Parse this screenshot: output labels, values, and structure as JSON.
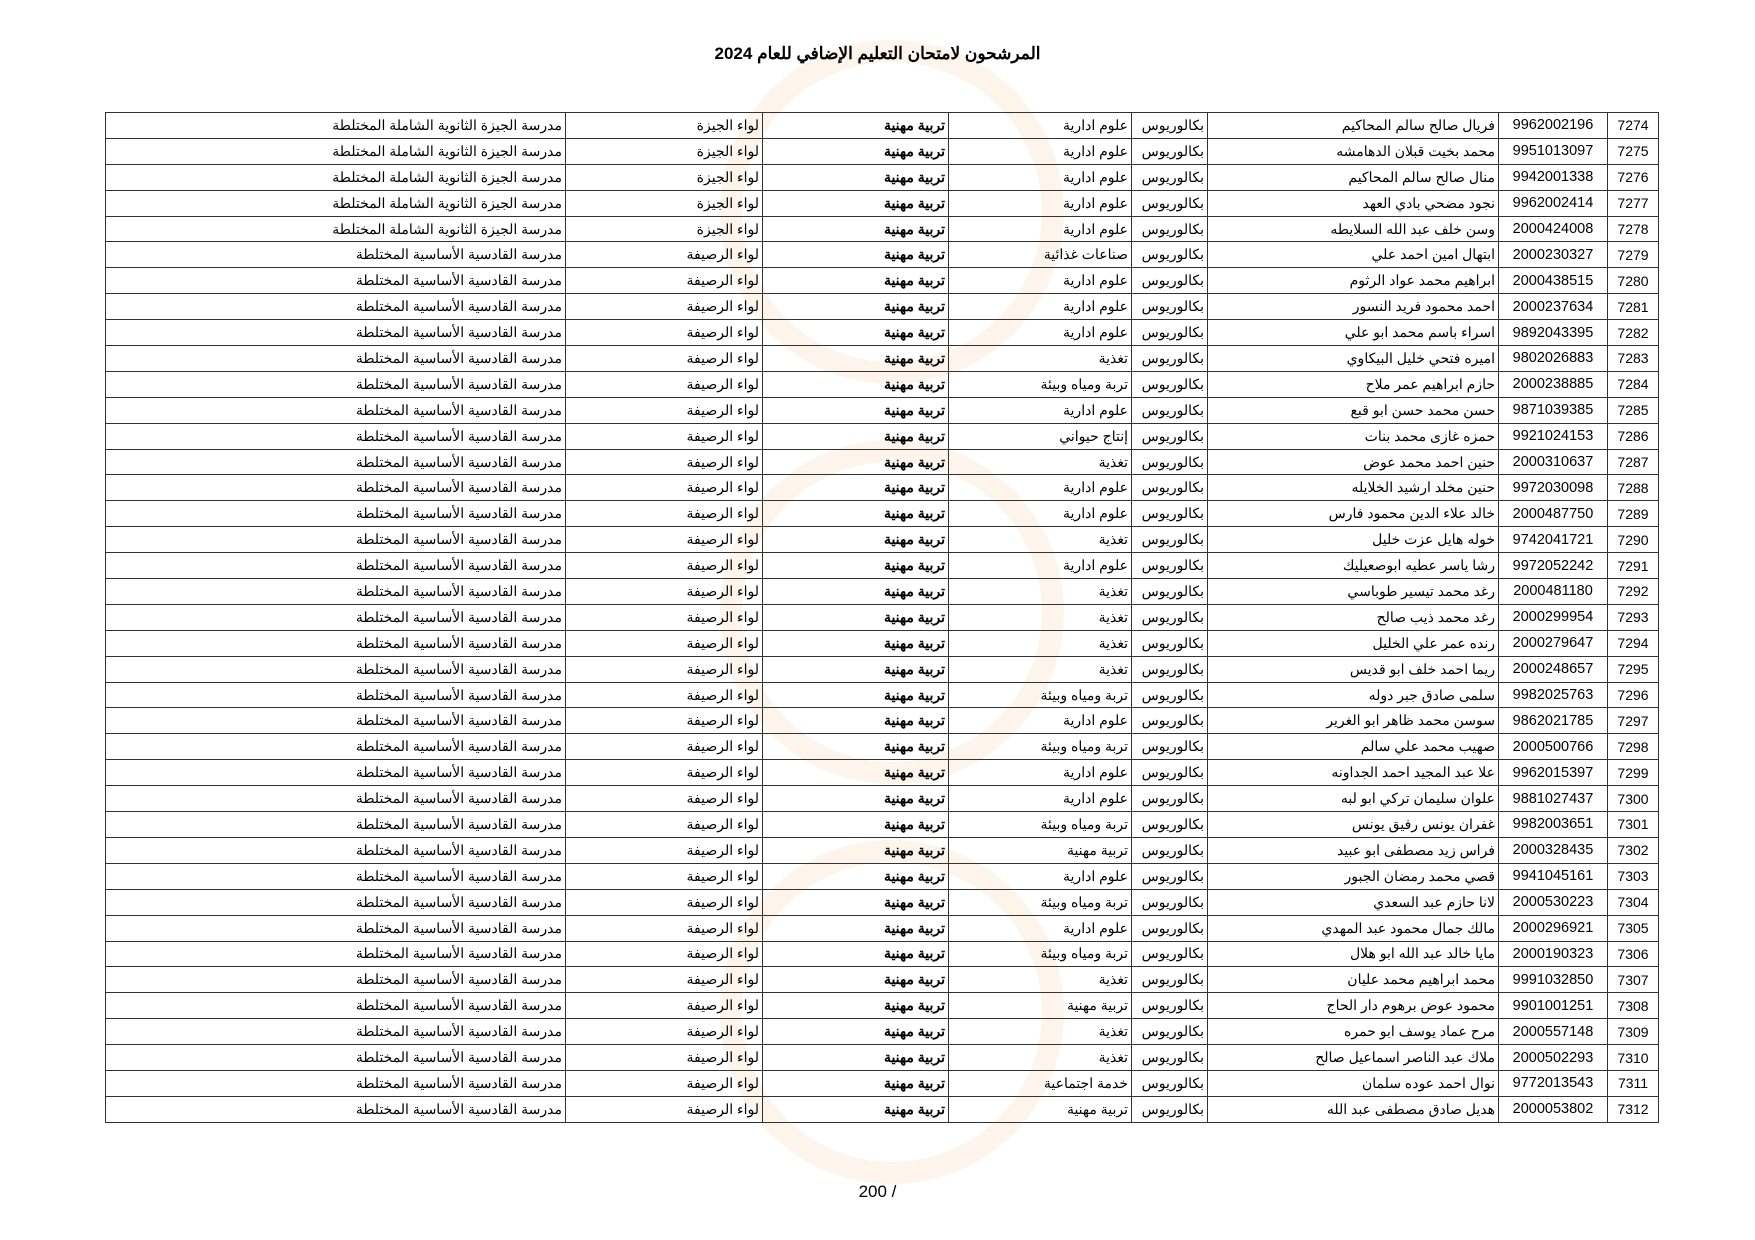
{
  "title": "المرشحون لامتحان التعليم الإضافي للعام 2024",
  "page_number": "200 /",
  "colors": {
    "watermark": "#f0963c",
    "border": "#333333"
  },
  "rows": [
    [
      "7274",
      "9962002196",
      "فريال صالح سالم المحاكيم",
      "بكالوريوس",
      "علوم ادارية",
      "تربية مهنية",
      "لواء الجيزة",
      "مدرسة الجيزة الثانوية الشاملة المختلطة"
    ],
    [
      "7275",
      "9951013097",
      "محمد بخيت قبلان الدهامشه",
      "بكالوريوس",
      "علوم ادارية",
      "تربية مهنية",
      "لواء الجيزة",
      "مدرسة الجيزة الثانوية الشاملة المختلطة"
    ],
    [
      "7276",
      "9942001338",
      "منال صالح سالم المحاكيم",
      "بكالوريوس",
      "علوم ادارية",
      "تربية مهنية",
      "لواء الجيزة",
      "مدرسة الجيزة الثانوية الشاملة المختلطة"
    ],
    [
      "7277",
      "9962002414",
      "نجود مضحي بادي العهد",
      "بكالوريوس",
      "علوم ادارية",
      "تربية مهنية",
      "لواء الجيزة",
      "مدرسة الجيزة الثانوية الشاملة المختلطة"
    ],
    [
      "7278",
      "2000424008",
      "وسن خلف عبد الله السلايطه",
      "بكالوريوس",
      "علوم ادارية",
      "تربية مهنية",
      "لواء الجيزة",
      "مدرسة الجيزة الثانوية الشاملة المختلطة"
    ],
    [
      "7279",
      "2000230327",
      "ابتهال امين احمد علي",
      "بكالوريوس",
      "صناعات غذائية",
      "تربية مهنية",
      "لواء الرصيفة",
      "مدرسة القادسية الأساسية المختلطة"
    ],
    [
      "7280",
      "2000438515",
      "ابراهيم محمد عواد الرثوم",
      "بكالوريوس",
      "علوم ادارية",
      "تربية مهنية",
      "لواء الرصيفة",
      "مدرسة القادسية الأساسية المختلطة"
    ],
    [
      "7281",
      "2000237634",
      "احمد محمود فريد النسور",
      "بكالوريوس",
      "علوم ادارية",
      "تربية مهنية",
      "لواء الرصيفة",
      "مدرسة القادسية الأساسية المختلطة"
    ],
    [
      "7282",
      "9892043395",
      "اسراء باسم محمد ابو علي",
      "بكالوريوس",
      "علوم ادارية",
      "تربية مهنية",
      "لواء الرصيفة",
      "مدرسة القادسية الأساسية المختلطة"
    ],
    [
      "7283",
      "9802026883",
      "اميره فتحي خليل البيكاوي",
      "بكالوريوس",
      "تغذية",
      "تربية مهنية",
      "لواء الرصيفة",
      "مدرسة القادسية الأساسية المختلطة"
    ],
    [
      "7284",
      "2000238885",
      "حازم ابراهيم عمر ملاح",
      "بكالوريوس",
      "تربة ومياه وبيئة",
      "تربية مهنية",
      "لواء الرصيفة",
      "مدرسة القادسية الأساسية المختلطة"
    ],
    [
      "7285",
      "9871039385",
      "حسن محمد حسن ابو قبع",
      "بكالوريوس",
      "علوم ادارية",
      "تربية مهنية",
      "لواء الرصيفة",
      "مدرسة القادسية الأساسية المختلطة"
    ],
    [
      "7286",
      "9921024153",
      "حمزه غازى محمد بنات",
      "بكالوريوس",
      "إنتاج حيواني",
      "تربية مهنية",
      "لواء الرصيفة",
      "مدرسة القادسية الأساسية المختلطة"
    ],
    [
      "7287",
      "2000310637",
      "حنين احمد محمد عوض",
      "بكالوريوس",
      "تغذية",
      "تربية مهنية",
      "لواء الرصيفة",
      "مدرسة القادسية الأساسية المختلطة"
    ],
    [
      "7288",
      "9972030098",
      "حنين مخلد ارشيد الخلايله",
      "بكالوريوس",
      "علوم ادارية",
      "تربية مهنية",
      "لواء الرصيفة",
      "مدرسة القادسية الأساسية المختلطة"
    ],
    [
      "7289",
      "2000487750",
      "خالد علاء الدين محمود فارس",
      "بكالوريوس",
      "علوم ادارية",
      "تربية مهنية",
      "لواء الرصيفة",
      "مدرسة القادسية الأساسية المختلطة"
    ],
    [
      "7290",
      "9742041721",
      "خوله هايل عزت خليل",
      "بكالوريوس",
      "تغذية",
      "تربية مهنية",
      "لواء الرصيفة",
      "مدرسة القادسية الأساسية المختلطة"
    ],
    [
      "7291",
      "9972052242",
      "رشا ياسر عطيه ابوصعيليك",
      "بكالوريوس",
      "علوم ادارية",
      "تربية مهنية",
      "لواء الرصيفة",
      "مدرسة القادسية الأساسية المختلطة"
    ],
    [
      "7292",
      "2000481180",
      "رغد محمد تيسير طوباسي",
      "بكالوريوس",
      "تغذية",
      "تربية مهنية",
      "لواء الرصيفة",
      "مدرسة القادسية الأساسية المختلطة"
    ],
    [
      "7293",
      "2000299954",
      "رغد محمد ذيب صالح",
      "بكالوريوس",
      "تغذية",
      "تربية مهنية",
      "لواء الرصيفة",
      "مدرسة القادسية الأساسية المختلطة"
    ],
    [
      "7294",
      "2000279647",
      "رنده عمر علي الخليل",
      "بكالوريوس",
      "تغذية",
      "تربية مهنية",
      "لواء الرصيفة",
      "مدرسة القادسية الأساسية المختلطة"
    ],
    [
      "7295",
      "2000248657",
      "ريما احمد خلف ابو قديس",
      "بكالوريوس",
      "تغذية",
      "تربية مهنية",
      "لواء الرصيفة",
      "مدرسة القادسية الأساسية المختلطة"
    ],
    [
      "7296",
      "9982025763",
      "سلمى صادق جبر دوله",
      "بكالوريوس",
      "تربة ومياه وبيئة",
      "تربية مهنية",
      "لواء الرصيفة",
      "مدرسة القادسية الأساسية المختلطة"
    ],
    [
      "7297",
      "9862021785",
      "سوسن محمد ظاهر ابو الغرير",
      "بكالوريوس",
      "علوم ادارية",
      "تربية مهنية",
      "لواء الرصيفة",
      "مدرسة القادسية الأساسية المختلطة"
    ],
    [
      "7298",
      "2000500766",
      "صهيب محمد علي سالم",
      "بكالوريوس",
      "تربة ومياه وبيئة",
      "تربية مهنية",
      "لواء الرصيفة",
      "مدرسة القادسية الأساسية المختلطة"
    ],
    [
      "7299",
      "9962015397",
      "علا عبد المجيد احمد الجداونه",
      "بكالوريوس",
      "علوم ادارية",
      "تربية مهنية",
      "لواء الرصيفة",
      "مدرسة القادسية الأساسية المختلطة"
    ],
    [
      "7300",
      "9881027437",
      "علوان سليمان تركي ابو لبه",
      "بكالوريوس",
      "علوم ادارية",
      "تربية مهنية",
      "لواء الرصيفة",
      "مدرسة القادسية الأساسية المختلطة"
    ],
    [
      "7301",
      "9982003651",
      "غفران يونس رفيق يونس",
      "بكالوريوس",
      "تربة ومياه وبيئة",
      "تربية مهنية",
      "لواء الرصيفة",
      "مدرسة القادسية الأساسية المختلطة"
    ],
    [
      "7302",
      "2000328435",
      "فراس زيد مصطفى ابو عبيد",
      "بكالوريوس",
      "تربية مهنية",
      "تربية مهنية",
      "لواء الرصيفة",
      "مدرسة القادسية الأساسية المختلطة"
    ],
    [
      "7303",
      "9941045161",
      "قصي محمد رمضان الجبور",
      "بكالوريوس",
      "علوم ادارية",
      "تربية مهنية",
      "لواء الرصيفة",
      "مدرسة القادسية الأساسية المختلطة"
    ],
    [
      "7304",
      "2000530223",
      "لانا حازم عبد السعدي",
      "بكالوريوس",
      "تربة ومياه وبيئة",
      "تربية مهنية",
      "لواء الرصيفة",
      "مدرسة القادسية الأساسية المختلطة"
    ],
    [
      "7305",
      "2000296921",
      "مالك جمال محمود عبد المهدي",
      "بكالوريوس",
      "علوم ادارية",
      "تربية مهنية",
      "لواء الرصيفة",
      "مدرسة القادسية الأساسية المختلطة"
    ],
    [
      "7306",
      "2000190323",
      "مايا خالد عبد الله ابو هلال",
      "بكالوريوس",
      "تربة ومياه وبيئة",
      "تربية مهنية",
      "لواء الرصيفة",
      "مدرسة القادسية الأساسية المختلطة"
    ],
    [
      "7307",
      "9991032850",
      "محمد ابراهيم محمد عليان",
      "بكالوريوس",
      "تغذية",
      "تربية مهنية",
      "لواء الرصيفة",
      "مدرسة القادسية الأساسية المختلطة"
    ],
    [
      "7308",
      "9901001251",
      "محمود عوض برهوم دار الحاج",
      "بكالوريوس",
      "تربية مهنية",
      "تربية مهنية",
      "لواء الرصيفة",
      "مدرسة القادسية الأساسية المختلطة"
    ],
    [
      "7309",
      "2000557148",
      "مرح عماد يوسف ابو حمره",
      "بكالوريوس",
      "تغذية",
      "تربية مهنية",
      "لواء الرصيفة",
      "مدرسة القادسية الأساسية المختلطة"
    ],
    [
      "7310",
      "2000502293",
      "ملاك عبد الناصر اسماعيل صالح",
      "بكالوريوس",
      "تغذية",
      "تربية مهنية",
      "لواء الرصيفة",
      "مدرسة القادسية الأساسية المختلطة"
    ],
    [
      "7311",
      "9772013543",
      "نوال احمد عوده سلمان",
      "بكالوريوس",
      "خدمة اجتماعية",
      "تربية مهنية",
      "لواء الرصيفة",
      "مدرسة القادسية الأساسية المختلطة"
    ],
    [
      "7312",
      "2000053802",
      "هديل صادق مصطفى عبد الله",
      "بكالوريوس",
      "تربية مهنية",
      "تربية مهنية",
      "لواء الرصيفة",
      "مدرسة القادسية الأساسية المختلطة"
    ]
  ]
}
